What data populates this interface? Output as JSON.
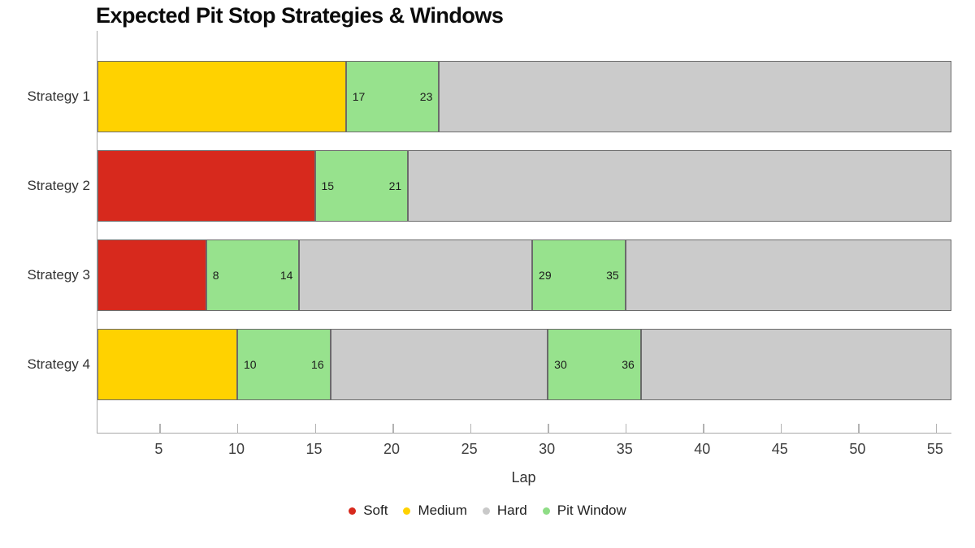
{
  "chart_data": {
    "type": "bar",
    "orientation": "horizontal-stacked",
    "title": "Expected Pit Stop Strategies & Windows",
    "xlabel": "Lap",
    "x_range": [
      1,
      56
    ],
    "x_ticks": [
      5,
      10,
      15,
      20,
      25,
      30,
      35,
      40,
      45,
      50,
      55
    ],
    "grid": false,
    "legend_position": "bottom-center",
    "categories": [
      "Strategy 1",
      "Strategy 2",
      "Strategy 3",
      "Strategy 4"
    ],
    "compound_colors": {
      "Soft": "#d7291d",
      "Medium": "#ffd200",
      "Hard": "#cbcbcb",
      "Pit Window": "#97e28d"
    },
    "strategies": [
      {
        "label": "Strategy 1",
        "segments": [
          {
            "type": "Medium",
            "start": 1,
            "end": 17
          },
          {
            "type": "Pit Window",
            "start": 17,
            "end": 23
          },
          {
            "type": "Hard",
            "start": 23,
            "end": 56
          }
        ]
      },
      {
        "label": "Strategy 2",
        "segments": [
          {
            "type": "Soft",
            "start": 1,
            "end": 15
          },
          {
            "type": "Pit Window",
            "start": 15,
            "end": 21
          },
          {
            "type": "Hard",
            "start": 21,
            "end": 56
          }
        ]
      },
      {
        "label": "Strategy 3",
        "segments": [
          {
            "type": "Soft",
            "start": 1,
            "end": 8
          },
          {
            "type": "Pit Window",
            "start": 8,
            "end": 14
          },
          {
            "type": "Hard",
            "start": 14,
            "end": 29
          },
          {
            "type": "Pit Window",
            "start": 29,
            "end": 35
          },
          {
            "type": "Hard",
            "start": 35,
            "end": 56
          }
        ]
      },
      {
        "label": "Strategy 4",
        "segments": [
          {
            "type": "Medium",
            "start": 1,
            "end": 10
          },
          {
            "type": "Pit Window",
            "start": 10,
            "end": 16
          },
          {
            "type": "Hard",
            "start": 16,
            "end": 30
          },
          {
            "type": "Pit Window",
            "start": 30,
            "end": 36
          },
          {
            "type": "Hard",
            "start": 36,
            "end": 56
          }
        ]
      }
    ],
    "legend": [
      {
        "label": "Soft",
        "color": "#d7291d"
      },
      {
        "label": "Medium",
        "color": "#ffd200"
      },
      {
        "label": "Hard",
        "color": "#c9c9c9"
      },
      {
        "label": "Pit Window",
        "color": "#8fdd86"
      }
    ]
  }
}
